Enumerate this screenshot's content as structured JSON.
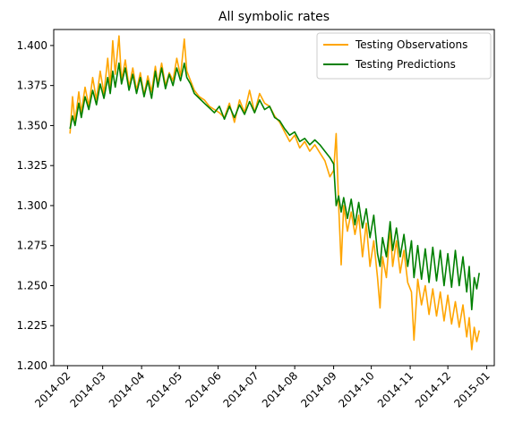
{
  "chart_data": {
    "type": "line",
    "title": "All symbolic rates",
    "xlabel": "",
    "ylabel": "",
    "grid": false,
    "legend_position": "top-right",
    "xlim": [
      "2014-01-21",
      "2015-01-07"
    ],
    "ylim": [
      1.2,
      1.41
    ],
    "x_ticks": [
      "2014-02",
      "2014-03",
      "2014-04",
      "2014-05",
      "2014-06",
      "2014-07",
      "2014-08",
      "2014-09",
      "2014-10",
      "2014-11",
      "2014-12",
      "2015-01"
    ],
    "y_ticks": [
      "1.200",
      "1.225",
      "1.250",
      "1.275",
      "1.300",
      "1.325",
      "1.350",
      "1.375",
      "1.400"
    ],
    "series": [
      {
        "name": "Testing Observations",
        "color": "#ffa500",
        "points": [
          [
            "2014-02-03",
            1.345
          ],
          [
            "2014-02-05",
            1.368
          ],
          [
            "2014-02-07",
            1.352
          ],
          [
            "2014-02-10",
            1.371
          ],
          [
            "2014-02-12",
            1.358
          ],
          [
            "2014-02-15",
            1.374
          ],
          [
            "2014-02-18",
            1.362
          ],
          [
            "2014-02-21",
            1.38
          ],
          [
            "2014-02-24",
            1.366
          ],
          [
            "2014-02-27",
            1.384
          ],
          [
            "2014-03-02",
            1.37
          ],
          [
            "2014-03-05",
            1.392
          ],
          [
            "2014-03-07",
            1.374
          ],
          [
            "2014-03-09",
            1.403
          ],
          [
            "2014-03-11",
            1.382
          ],
          [
            "2014-03-14",
            1.406
          ],
          [
            "2014-03-16",
            1.378
          ],
          [
            "2014-03-19",
            1.391
          ],
          [
            "2014-03-22",
            1.374
          ],
          [
            "2014-03-25",
            1.386
          ],
          [
            "2014-03-28",
            1.372
          ],
          [
            "2014-03-31",
            1.383
          ],
          [
            "2014-04-03",
            1.369
          ],
          [
            "2014-04-06",
            1.381
          ],
          [
            "2014-04-09",
            1.371
          ],
          [
            "2014-04-12",
            1.387
          ],
          [
            "2014-04-14",
            1.376
          ],
          [
            "2014-04-17",
            1.389
          ],
          [
            "2014-04-20",
            1.375
          ],
          [
            "2014-04-23",
            1.383
          ],
          [
            "2014-04-26",
            1.378
          ],
          [
            "2014-04-29",
            1.392
          ],
          [
            "2014-05-02",
            1.381
          ],
          [
            "2014-05-05",
            1.404
          ],
          [
            "2014-05-07",
            1.384
          ],
          [
            "2014-05-10",
            1.378
          ],
          [
            "2014-05-13",
            1.372
          ],
          [
            "2014-05-17",
            1.368
          ],
          [
            "2014-05-21",
            1.366
          ],
          [
            "2014-05-25",
            1.362
          ],
          [
            "2014-05-29",
            1.36
          ],
          [
            "2014-06-02",
            1.358
          ],
          [
            "2014-06-06",
            1.355
          ],
          [
            "2014-06-10",
            1.364
          ],
          [
            "2014-06-14",
            1.352
          ],
          [
            "2014-06-18",
            1.366
          ],
          [
            "2014-06-22",
            1.358
          ],
          [
            "2014-06-26",
            1.372
          ],
          [
            "2014-06-30",
            1.358
          ],
          [
            "2014-07-04",
            1.37
          ],
          [
            "2014-07-08",
            1.364
          ],
          [
            "2014-07-12",
            1.362
          ],
          [
            "2014-07-16",
            1.356
          ],
          [
            "2014-07-20",
            1.352
          ],
          [
            "2014-07-24",
            1.346
          ],
          [
            "2014-07-28",
            1.34
          ],
          [
            "2014-08-01",
            1.344
          ],
          [
            "2014-08-05",
            1.336
          ],
          [
            "2014-08-09",
            1.34
          ],
          [
            "2014-08-13",
            1.334
          ],
          [
            "2014-08-17",
            1.338
          ],
          [
            "2014-08-21",
            1.333
          ],
          [
            "2014-08-25",
            1.328
          ],
          [
            "2014-08-29",
            1.318
          ],
          [
            "2014-09-01",
            1.322
          ],
          [
            "2014-09-03",
            1.345
          ],
          [
            "2014-09-05",
            1.3
          ],
          [
            "2014-09-07",
            1.263
          ],
          [
            "2014-09-09",
            1.3
          ],
          [
            "2014-09-12",
            1.284
          ],
          [
            "2014-09-15",
            1.296
          ],
          [
            "2014-09-18",
            1.282
          ],
          [
            "2014-09-21",
            1.294
          ],
          [
            "2014-09-24",
            1.268
          ],
          [
            "2014-09-27",
            1.289
          ],
          [
            "2014-09-30",
            1.262
          ],
          [
            "2014-10-03",
            1.278
          ],
          [
            "2014-10-06",
            1.255
          ],
          [
            "2014-10-08",
            1.236
          ],
          [
            "2014-10-10",
            1.268
          ],
          [
            "2014-10-13",
            1.255
          ],
          [
            "2014-10-16",
            1.286
          ],
          [
            "2014-10-18",
            1.262
          ],
          [
            "2014-10-21",
            1.278
          ],
          [
            "2014-10-24",
            1.258
          ],
          [
            "2014-10-27",
            1.272
          ],
          [
            "2014-10-30",
            1.252
          ],
          [
            "2014-11-02",
            1.246
          ],
          [
            "2014-11-04",
            1.216
          ],
          [
            "2014-11-07",
            1.254
          ],
          [
            "2014-11-10",
            1.238
          ],
          [
            "2014-11-13",
            1.25
          ],
          [
            "2014-11-16",
            1.232
          ],
          [
            "2014-11-19",
            1.248
          ],
          [
            "2014-11-22",
            1.231
          ],
          [
            "2014-11-25",
            1.246
          ],
          [
            "2014-11-28",
            1.228
          ],
          [
            "2014-12-01",
            1.244
          ],
          [
            "2014-12-04",
            1.226
          ],
          [
            "2014-12-07",
            1.24
          ],
          [
            "2014-12-10",
            1.224
          ],
          [
            "2014-12-13",
            1.238
          ],
          [
            "2014-12-16",
            1.218
          ],
          [
            "2014-12-18",
            1.23
          ],
          [
            "2014-12-20",
            1.21
          ],
          [
            "2014-12-22",
            1.224
          ],
          [
            "2014-12-24",
            1.215
          ],
          [
            "2014-12-26",
            1.222
          ]
        ]
      },
      {
        "name": "Testing Predictions",
        "color": "#008000",
        "points": [
          [
            "2014-02-03",
            1.348
          ],
          [
            "2014-02-05",
            1.356
          ],
          [
            "2014-02-07",
            1.35
          ],
          [
            "2014-02-10",
            1.364
          ],
          [
            "2014-02-12",
            1.355
          ],
          [
            "2014-02-15",
            1.368
          ],
          [
            "2014-02-18",
            1.36
          ],
          [
            "2014-02-21",
            1.372
          ],
          [
            "2014-02-24",
            1.363
          ],
          [
            "2014-02-27",
            1.376
          ],
          [
            "2014-03-02",
            1.367
          ],
          [
            "2014-03-05",
            1.38
          ],
          [
            "2014-03-07",
            1.37
          ],
          [
            "2014-03-09",
            1.384
          ],
          [
            "2014-03-11",
            1.374
          ],
          [
            "2014-03-14",
            1.389
          ],
          [
            "2014-03-16",
            1.376
          ],
          [
            "2014-03-19",
            1.386
          ],
          [
            "2014-03-22",
            1.372
          ],
          [
            "2014-03-25",
            1.382
          ],
          [
            "2014-03-28",
            1.37
          ],
          [
            "2014-03-31",
            1.38
          ],
          [
            "2014-04-03",
            1.368
          ],
          [
            "2014-04-06",
            1.378
          ],
          [
            "2014-04-09",
            1.367
          ],
          [
            "2014-04-12",
            1.384
          ],
          [
            "2014-04-14",
            1.374
          ],
          [
            "2014-04-17",
            1.386
          ],
          [
            "2014-04-20",
            1.373
          ],
          [
            "2014-04-23",
            1.382
          ],
          [
            "2014-04-26",
            1.375
          ],
          [
            "2014-04-29",
            1.386
          ],
          [
            "2014-05-02",
            1.378
          ],
          [
            "2014-05-05",
            1.389
          ],
          [
            "2014-05-07",
            1.38
          ],
          [
            "2014-05-10",
            1.376
          ],
          [
            "2014-05-13",
            1.37
          ],
          [
            "2014-05-17",
            1.367
          ],
          [
            "2014-05-21",
            1.364
          ],
          [
            "2014-05-25",
            1.361
          ],
          [
            "2014-05-29",
            1.358
          ],
          [
            "2014-06-02",
            1.362
          ],
          [
            "2014-06-06",
            1.354
          ],
          [
            "2014-06-10",
            1.362
          ],
          [
            "2014-06-14",
            1.355
          ],
          [
            "2014-06-18",
            1.363
          ],
          [
            "2014-06-22",
            1.357
          ],
          [
            "2014-06-26",
            1.365
          ],
          [
            "2014-06-30",
            1.358
          ],
          [
            "2014-07-04",
            1.366
          ],
          [
            "2014-07-08",
            1.36
          ],
          [
            "2014-07-12",
            1.362
          ],
          [
            "2014-07-16",
            1.355
          ],
          [
            "2014-07-20",
            1.353
          ],
          [
            "2014-07-24",
            1.348
          ],
          [
            "2014-07-28",
            1.344
          ],
          [
            "2014-08-01",
            1.346
          ],
          [
            "2014-08-05",
            1.34
          ],
          [
            "2014-08-09",
            1.342
          ],
          [
            "2014-08-13",
            1.338
          ],
          [
            "2014-08-17",
            1.341
          ],
          [
            "2014-08-21",
            1.338
          ],
          [
            "2014-08-25",
            1.334
          ],
          [
            "2014-08-29",
            1.33
          ],
          [
            "2014-09-01",
            1.326
          ],
          [
            "2014-09-03",
            1.3
          ],
          [
            "2014-09-05",
            1.306
          ],
          [
            "2014-09-07",
            1.296
          ],
          [
            "2014-09-09",
            1.305
          ],
          [
            "2014-09-12",
            1.292
          ],
          [
            "2014-09-15",
            1.304
          ],
          [
            "2014-09-18",
            1.288
          ],
          [
            "2014-09-21",
            1.302
          ],
          [
            "2014-09-24",
            1.286
          ],
          [
            "2014-09-27",
            1.298
          ],
          [
            "2014-09-30",
            1.28
          ],
          [
            "2014-10-03",
            1.294
          ],
          [
            "2014-10-06",
            1.27
          ],
          [
            "2014-10-08",
            1.262
          ],
          [
            "2014-10-10",
            1.28
          ],
          [
            "2014-10-13",
            1.268
          ],
          [
            "2014-10-16",
            1.29
          ],
          [
            "2014-10-18",
            1.272
          ],
          [
            "2014-10-21",
            1.286
          ],
          [
            "2014-10-24",
            1.268
          ],
          [
            "2014-10-27",
            1.282
          ],
          [
            "2014-10-30",
            1.262
          ],
          [
            "2014-11-02",
            1.278
          ],
          [
            "2014-11-04",
            1.255
          ],
          [
            "2014-11-07",
            1.275
          ],
          [
            "2014-11-10",
            1.254
          ],
          [
            "2014-11-13",
            1.273
          ],
          [
            "2014-11-16",
            1.252
          ],
          [
            "2014-11-19",
            1.274
          ],
          [
            "2014-11-22",
            1.253
          ],
          [
            "2014-11-25",
            1.272
          ],
          [
            "2014-11-28",
            1.25
          ],
          [
            "2014-12-01",
            1.27
          ],
          [
            "2014-12-04",
            1.249
          ],
          [
            "2014-12-07",
            1.272
          ],
          [
            "2014-12-10",
            1.25
          ],
          [
            "2014-12-13",
            1.268
          ],
          [
            "2014-12-16",
            1.246
          ],
          [
            "2014-12-18",
            1.262
          ],
          [
            "2014-12-20",
            1.235
          ],
          [
            "2014-12-22",
            1.255
          ],
          [
            "2014-12-24",
            1.248
          ],
          [
            "2014-12-26",
            1.258
          ]
        ]
      }
    ]
  }
}
